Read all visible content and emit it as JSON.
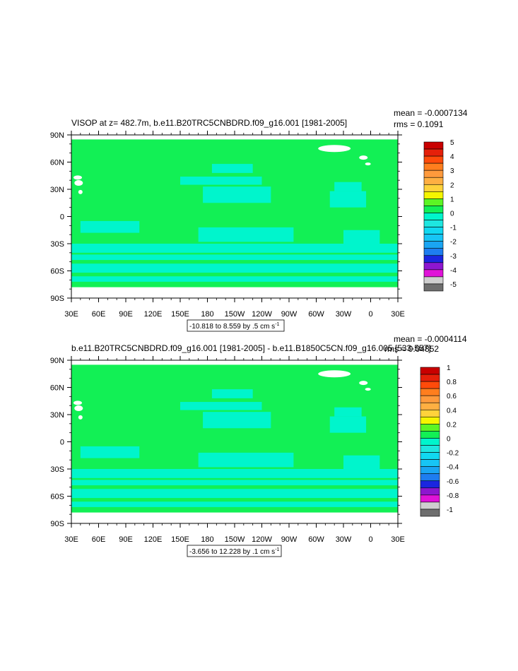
{
  "chart_data": [
    {
      "type": "heatmap",
      "title": "VISOP at z= 482.7m, b.e11.B20TRC5CNBDRD.f09_g16.001 [1981-2005]",
      "stats": {
        "mean": "mean = -0.0007134",
        "rms": "rms = 0.1091"
      },
      "info_box": {
        "text": "-10.818 to 8.559 by .5 cm s",
        "superscript": "-1"
      },
      "x_ticks": [
        "30E",
        "60E",
        "90E",
        "120E",
        "150E",
        "180",
        "150W",
        "120W",
        "90W",
        "60W",
        "30W",
        "0",
        "30E"
      ],
      "y_ticks": [
        "90N",
        "60N",
        "30N",
        "0",
        "30S",
        "60S",
        "90S"
      ],
      "xlim": [
        30,
        390
      ],
      "ylim": [
        -90,
        90
      ],
      "colorbar_labels": [
        "5",
        "4",
        "3",
        "2",
        "1",
        "0",
        "-1",
        "-2",
        "-3",
        "-4",
        "-5"
      ],
      "levels": [
        -5,
        -4.5,
        -4,
        -3.5,
        -3,
        -2.5,
        -2,
        -1.5,
        -1,
        -0.5,
        0,
        0.5,
        1,
        1.5,
        2,
        2.5,
        3,
        3.5,
        4,
        4.5,
        5
      ],
      "colors": [
        "#6e6e6e",
        "#cfcfcf",
        "#e013d8",
        "#8d16cf",
        "#1b26e0",
        "#1e7df0",
        "#1aa5f3",
        "#17c5f5",
        "#11d8f1",
        "#1ee6e0",
        "#00f5cc",
        "#12f055",
        "#5cf524",
        "#f5f500",
        "#ffd23b",
        "#ffaf42",
        "#ff9a3c",
        "#ff7e1e",
        "#ff4a0a",
        "#e5200a",
        "#c90000"
      ],
      "field_summary": "Mostly 0 (green) with bands of -0.5 to 0 (cyan) in subtropical and Southern Ocean regions; white where no data"
    },
    {
      "type": "heatmap",
      "title": "b.e11.B20TRC5CNBDRD.f09_g16.001 [1981-2005] - b.e11.B1850C5CN.f09_g16.005 [533-557]",
      "stats": {
        "mean": "mean = -0.0004114",
        "rms": "rms = 0.04852"
      },
      "info_box": {
        "text": "-3.656 to 12.228 by .1 cm s",
        "superscript": "-1"
      },
      "x_ticks": [
        "30E",
        "60E",
        "90E",
        "120E",
        "150E",
        "180",
        "150W",
        "120W",
        "90W",
        "60W",
        "30W",
        "0",
        "30E"
      ],
      "y_ticks": [
        "90N",
        "60N",
        "30N",
        "0",
        "30S",
        "60S",
        "90S"
      ],
      "xlim": [
        30,
        390
      ],
      "ylim": [
        -90,
        90
      ],
      "colorbar_labels": [
        "1",
        "0.8",
        "0.6",
        "0.4",
        "0.2",
        "0",
        "-0.2",
        "-0.4",
        "-0.6",
        "-0.8",
        "-1"
      ],
      "levels": [
        -1,
        -0.9,
        -0.8,
        -0.7,
        -0.6,
        -0.5,
        -0.4,
        -0.3,
        -0.2,
        -0.1,
        0,
        0.1,
        0.2,
        0.3,
        0.4,
        0.5,
        0.6,
        0.7,
        0.8,
        0.9,
        1
      ],
      "colors": [
        "#6e6e6e",
        "#cfcfcf",
        "#e013d8",
        "#8d16cf",
        "#1b26e0",
        "#1e7df0",
        "#1aa5f3",
        "#17c5f5",
        "#11d8f1",
        "#1ee6e0",
        "#00f5cc",
        "#12f055",
        "#5cf524",
        "#f5f500",
        "#ffd23b",
        "#ffaf42",
        "#ff9a3c",
        "#ff7e1e",
        "#ff4a0a",
        "#e5200a",
        "#c90000"
      ],
      "field_summary": "Mostly 0 (green) with bands of -0.1 to 0 (cyan) in subtropical and Southern Ocean regions; white where no data"
    }
  ]
}
